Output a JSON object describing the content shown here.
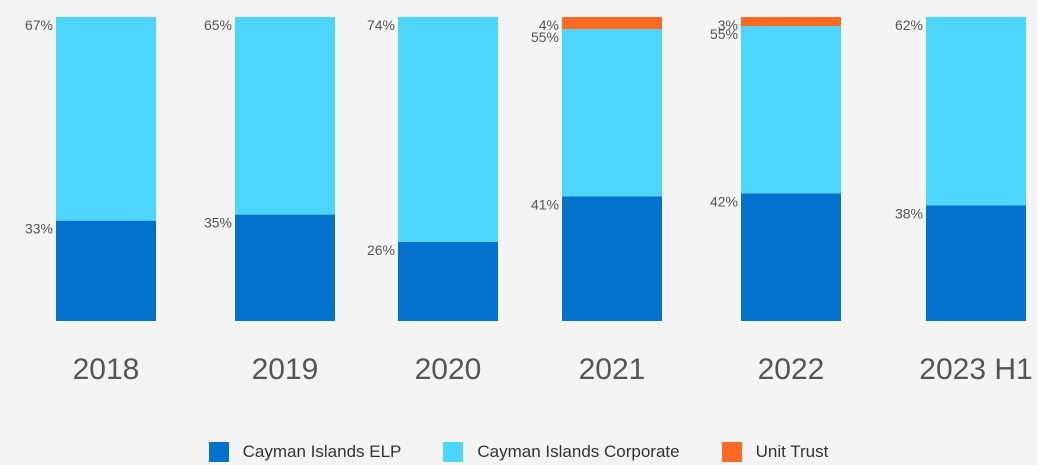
{
  "chart_data": {
    "type": "bar",
    "stacked": true,
    "normalized_percent": true,
    "categories": [
      "2018",
      "2019",
      "2020",
      "2021",
      "2022",
      "2023 H1"
    ],
    "series": [
      {
        "name": "Cayman Islands ELP",
        "color": "#0272cc",
        "values": [
          33,
          35,
          26,
          41,
          42,
          38
        ]
      },
      {
        "name": "Cayman Islands Corporate",
        "color": "#4dd5fc",
        "values": [
          67,
          65,
          74,
          55,
          55,
          62
        ]
      },
      {
        "name": "Unit Trust",
        "color": "#fa6a23",
        "values": [
          0,
          0,
          0,
          4,
          3,
          0
        ]
      }
    ],
    "data_labels": [
      [
        "33%",
        "67%",
        ""
      ],
      [
        "35%",
        "65%",
        ""
      ],
      [
        "26%",
        "74%",
        ""
      ],
      [
        "41%",
        "55%",
        "4%"
      ],
      [
        "42%",
        "55%",
        "3%"
      ],
      [
        "38%",
        "62%",
        ""
      ]
    ],
    "ylim": [
      0,
      100
    ],
    "grid": false,
    "legend_position": "bottom-center"
  }
}
